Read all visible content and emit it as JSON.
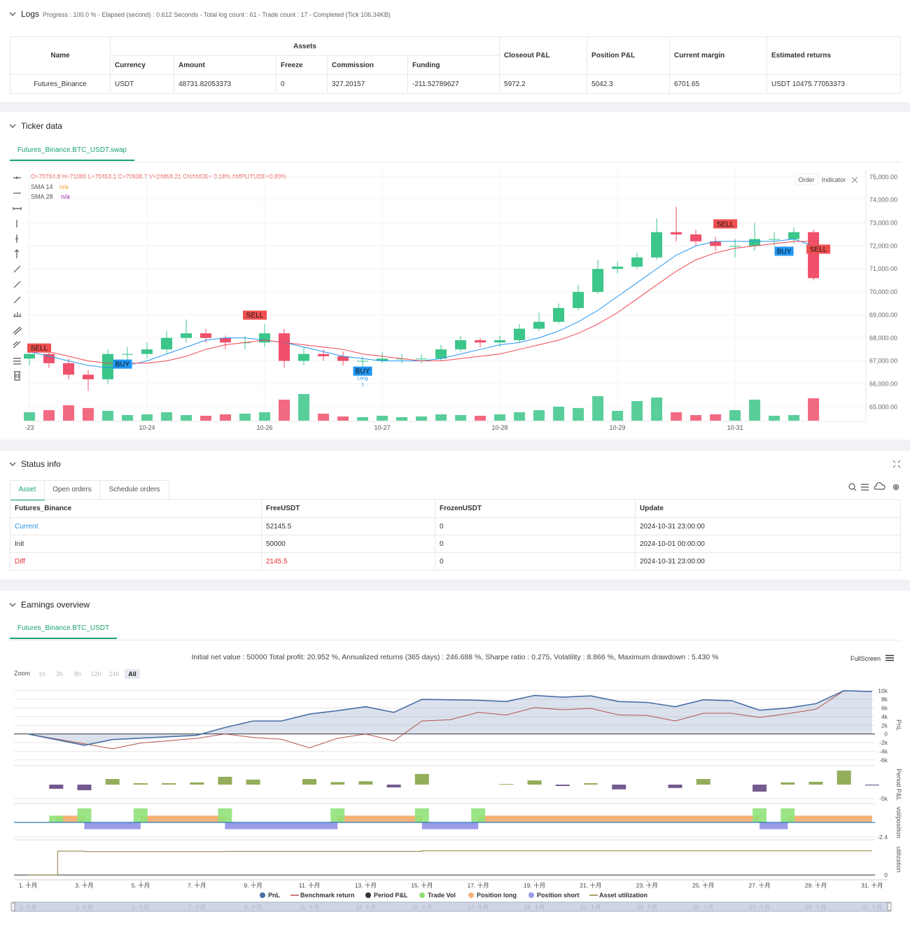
{
  "logs": {
    "title": "Logs",
    "summary": "Progress : 100.0 % - Elapsed (second) : 0.612 Seconds - Total log count : 61 - Trade count : 17 - Completed (Tick 106.34KB)",
    "table": {
      "header": [
        "Name",
        "Assets",
        "Closeout P&L",
        "Position P&L",
        "Current margin",
        "Estimated returns"
      ],
      "subheader": [
        "Currency",
        "Amount",
        "Freeze",
        "Commission",
        "Funding"
      ],
      "rows": [
        [
          "Futures_Binance",
          "USDT",
          "48731.82053373",
          "0",
          "327.20157",
          "-211.52789627",
          "5972.2",
          "5042.3",
          "6701.65",
          "USDT 10475.77053373"
        ]
      ]
    }
  },
  "ticker": {
    "title": "Ticker data",
    "tab": "Futures_Binance.BTC_USDT.swap",
    "buttons": [
      "Order",
      "Indicator"
    ],
    "ohlc_text": "O=70764.8 H=71080 L=70453.1 C=70638.7 V=24858.21 CHANGE=-0.18% AMPLITUDE=0.89%",
    "chart": {
      "type": "candlestick",
      "up_color": "#3cc68a",
      "down_color": "#f0506b",
      "grid": true,
      "xlim": [
        -1,
        170.7
      ],
      "xticks": [
        {
          "value": 0,
          "label": "-23"
        },
        {
          "value": 24,
          "label": "10-24"
        },
        {
          "value": 48,
          "label": "10-26"
        },
        {
          "value": 72,
          "label": "10-27"
        },
        {
          "value": 96,
          "label": "10-28"
        },
        {
          "value": 120,
          "label": "10-29"
        },
        {
          "value": 144,
          "label": "10-31"
        }
      ],
      "ylim": [
        64400,
        75300
      ],
      "yticks": [
        {
          "value": 75000,
          "label": "75,000.00"
        },
        {
          "value": 74000,
          "label": "74,000.00"
        },
        {
          "value": 73000,
          "label": "73,000.00"
        },
        {
          "value": 72000,
          "label": "72,000.00"
        },
        {
          "value": 71000,
          "label": "71,000.00"
        },
        {
          "value": 70000,
          "label": "70,000.00"
        },
        {
          "value": 69000,
          "label": "69,000.00"
        },
        {
          "value": 68000,
          "label": "68,000.00"
        },
        {
          "value": 67000,
          "label": "67,000.00"
        },
        {
          "value": 66000,
          "label": "66,000.00"
        },
        {
          "value": 65000,
          "label": "65,000.00"
        }
      ],
      "vlim": [
        0,
        50000
      ],
      "x": [
        0,
        4,
        8,
        12,
        16,
        20,
        24,
        28,
        32,
        36,
        40,
        44,
        48,
        52,
        56,
        60,
        64,
        68,
        72,
        76,
        80,
        84,
        88,
        92,
        96,
        100,
        104,
        108,
        112,
        116,
        120,
        124,
        128,
        132,
        136,
        140,
        144,
        148,
        152,
        156,
        160
      ],
      "open": [
        67100,
        67300,
        66900,
        66400,
        66200,
        67300,
        67300,
        67500,
        68000,
        68200,
        68000,
        67800,
        67800,
        68200,
        67000,
        67300,
        67200,
        67000,
        67000,
        67100,
        67100,
        67100,
        67500,
        67900,
        67800,
        67900,
        68400,
        68700,
        69300,
        70000,
        71000,
        71100,
        71500,
        72600,
        72500,
        72200,
        72000,
        72000,
        72300,
        72300,
        72600
      ],
      "high": [
        67600,
        67500,
        67100,
        66600,
        67500,
        67600,
        67800,
        68300,
        68800,
        68400,
        68100,
        68100,
        68600,
        68400,
        67600,
        67500,
        67400,
        67200,
        67400,
        67300,
        67300,
        67700,
        68100,
        68000,
        68100,
        68600,
        69100,
        69500,
        70300,
        71400,
        71300,
        71700,
        73200,
        73700,
        72700,
        72400,
        72300,
        73000,
        72600,
        72800,
        72700
      ],
      "low": [
        66800,
        66700,
        66200,
        65700,
        66000,
        67000,
        67100,
        67300,
        67800,
        67800,
        67500,
        67500,
        67600,
        66700,
        66800,
        67000,
        66800,
        66700,
        66900,
        66900,
        66900,
        67000,
        67400,
        67600,
        67600,
        67800,
        68300,
        68600,
        69200,
        69900,
        70800,
        71000,
        71400,
        72200,
        72000,
        71800,
        71500,
        71800,
        72000,
        72100,
        70500
      ],
      "close": [
        67300,
        66900,
        66400,
        66200,
        67300,
        67300,
        67500,
        68000,
        68200,
        68000,
        67800,
        67800,
        68200,
        67000,
        67300,
        67200,
        67000,
        67000,
        67100,
        67100,
        67100,
        67500,
        67900,
        67800,
        67900,
        68400,
        68700,
        69300,
        70000,
        71000,
        71100,
        71500,
        72600,
        72500,
        72200,
        72000,
        72000,
        72300,
        72300,
        72600,
        70600
      ],
      "volume": [
        12000,
        15000,
        22000,
        18000,
        14000,
        8000,
        9000,
        12000,
        8000,
        7000,
        9000,
        10000,
        12000,
        30000,
        38000,
        10000,
        6000,
        5000,
        7000,
        5000,
        6000,
        9000,
        8000,
        7000,
        9000,
        12000,
        15000,
        20000,
        18000,
        35000,
        14000,
        28000,
        33000,
        12000,
        8000,
        9000,
        15000,
        30000,
        7000,
        8000,
        32000
      ],
      "sma": [
        {
          "name": "SMA 14",
          "value_text": "n/a",
          "color": "#2196f3",
          "label_color": "#f59a23",
          "values": [
            67400,
            67200,
            67000,
            66800,
            66700,
            66800,
            67000,
            67300,
            67600,
            67900,
            68000,
            68000,
            67900,
            67800,
            67600,
            67400,
            67200,
            67100,
            67000,
            67000,
            67000,
            67100,
            67300,
            67500,
            67700,
            67800,
            68000,
            68300,
            68700,
            69200,
            69800,
            70400,
            71000,
            71600,
            72000,
            72200,
            72200,
            72200,
            72200,
            72300,
            72000
          ]
        },
        {
          "name": "SMA 28",
          "value_text": "n/a",
          "color": "#f0454f",
          "label_color": "#9c27b0",
          "values": [
            67600,
            67400,
            67200,
            67000,
            66900,
            66900,
            66900,
            67000,
            67200,
            67500,
            67700,
            67800,
            67900,
            67800,
            67700,
            67600,
            67500,
            67300,
            67200,
            67100,
            67000,
            67000,
            67100,
            67200,
            67300,
            67500,
            67700,
            67900,
            68200,
            68600,
            69100,
            69700,
            70300,
            70900,
            71400,
            71700,
            71900,
            72000,
            72100,
            72200,
            72200
          ]
        }
      ],
      "signals": [
        {
          "x": 2,
          "price": 67560,
          "label": "SELL",
          "color": "#f04f4f"
        },
        {
          "x": 19,
          "price": 66860,
          "label": "BUY",
          "color": "#2196f3"
        },
        {
          "x": 46,
          "price": 68990,
          "label": "SELL",
          "color": "#f04f4f"
        },
        {
          "x": 68,
          "price": 66555,
          "label": "BUY",
          "color": "#2196f3"
        },
        {
          "x": 142,
          "price": 72960,
          "label": "SELL",
          "color": "#f04f4f"
        },
        {
          "x": 154,
          "price": 71770,
          "label": "BUY",
          "color": "#2196f3"
        },
        {
          "x": 161,
          "price": 71860,
          "label": "SELL",
          "color": "#f04f4f"
        }
      ],
      "annotation": {
        "x": 68,
        "price": 66280,
        "texts": [
          "Long",
          "1"
        ]
      }
    }
  },
  "status": {
    "title": "Status info",
    "tabs": [
      "Asset",
      "Open orders",
      "Schedule orders"
    ],
    "table": {
      "header": [
        "Futures_Binance",
        "FreeUSDT",
        "FrozenUSDT",
        "Update"
      ],
      "rows": [
        [
          "Current",
          "52145.5",
          "0",
          "2024-10-31 23:00:00"
        ],
        [
          "Init",
          "50000",
          "0",
          "2024-10-01 00:00:00"
        ],
        [
          "Diff",
          "2145.5",
          "0",
          "2024-10-31 23:00:00"
        ]
      ]
    }
  },
  "earnings": {
    "title": "Earnings overview",
    "tab": "Futures_Binance.BTC_USDT",
    "summary": "Initial net value : 50000 Total profit: 20.952 %, Annualized returns (365 days) : 246.688 %, Sharpe ratio : 0.275, Volatility : 8.866 %, Maximum drawdown : 5.430 %",
    "fullscreen": "FullScreen",
    "zoom": {
      "label": "Zoom",
      "buttons": [
        "1h",
        "3h",
        "8h",
        "12h",
        "24h",
        "All"
      ]
    },
    "chart": {
      "type": "multi-panel",
      "xlim": [
        0.5,
        31.6
      ],
      "xticks": [
        {
          "value": 1,
          "label": "1. 十月"
        },
        {
          "value": 3,
          "label": "3. 十月"
        },
        {
          "value": 5,
          "label": "5. 十月"
        },
        {
          "value": 7,
          "label": "7. 十月"
        },
        {
          "value": 9,
          "label": "9. 十月"
        },
        {
          "value": 11,
          "label": "11. 十月"
        },
        {
          "value": 13,
          "label": "13. 十月"
        },
        {
          "value": 15,
          "label": "15. 十月"
        },
        {
          "value": 17,
          "label": "17. 十月"
        },
        {
          "value": 19,
          "label": "19. 十月"
        },
        {
          "value": 21,
          "label": "21. 十月"
        },
        {
          "value": 23,
          "label": "23. 十月"
        },
        {
          "value": 25,
          "label": "25. 十月"
        },
        {
          "value": 27,
          "label": "27. 十月"
        },
        {
          "value": 29,
          "label": "29. 十月"
        },
        {
          "value": 31,
          "label": "31. 十月"
        }
      ],
      "pnl": {
        "name": "PnL",
        "color": "#4a6fa5",
        "axis_label": "PnL",
        "ylim": [
          -7000,
          11100
        ],
        "yticks": [
          {
            "value": 10000,
            "label": "10k"
          },
          {
            "value": 8000,
            "label": "8k"
          },
          {
            "value": 6000,
            "label": "6k"
          },
          {
            "value": 4000,
            "label": "4k"
          },
          {
            "value": 2000,
            "label": "2k"
          },
          0,
          {
            "value": -2000,
            "label": "-2k"
          },
          {
            "value": -4000,
            "label": "-4k"
          },
          {
            "value": -6000,
            "label": "-6k"
          }
        ],
        "x": [
          1,
          3,
          4,
          7,
          8,
          9,
          10,
          11,
          12,
          13,
          14,
          15,
          17,
          18,
          19,
          20,
          21,
          22,
          23,
          24,
          25,
          26,
          27,
          28,
          29,
          30,
          31
        ],
        "values": [
          0,
          -2600,
          -1300,
          -300,
          1500,
          3000,
          3000,
          4600,
          5400,
          6300,
          5000,
          8000,
          7800,
          7500,
          8900,
          8500,
          8800,
          7500,
          7300,
          6300,
          7900,
          7700,
          5500,
          6000,
          7000,
          10000,
          9800
        ]
      },
      "benchmark": {
        "name": "Benchmark return",
        "color": "#b5534f",
        "x": [
          1,
          4,
          5,
          7,
          8,
          9,
          10,
          11,
          12,
          13,
          14,
          15,
          16,
          17,
          18,
          19,
          20,
          21,
          22,
          23,
          24,
          25,
          26,
          27,
          28,
          29,
          30,
          31
        ],
        "values": [
          0,
          -3400,
          -2100,
          -1000,
          0,
          -800,
          -1200,
          -3200,
          -1000,
          0,
          -1600,
          3000,
          3300,
          5000,
          4400,
          6100,
          5600,
          5900,
          4400,
          4300,
          3000,
          4800,
          4800,
          3800,
          4700,
          5700,
          10000,
          9800
        ]
      },
      "period": {
        "name": "Period P&L",
        "axis_label": "Period P&L",
        "color": "#333333",
        "positive_color": "#93ad5a",
        "negative_color": "#735a8f",
        "ylim": [
          -6250,
          6000
        ],
        "yticks": [
          {
            "value": -5000,
            "label": "-5k"
          }
        ],
        "x": [
          2,
          3,
          4,
          5,
          6,
          7,
          8,
          9,
          11,
          12,
          13,
          14,
          15,
          18,
          19,
          20,
          21,
          22,
          24,
          25,
          27,
          28,
          29,
          30,
          31
        ],
        "values": [
          -1500,
          -2000,
          2000,
          500,
          500,
          800,
          2800,
          1800,
          2000,
          900,
          1200,
          -1000,
          3800,
          200,
          1500,
          -500,
          500,
          -1700,
          -1200,
          2000,
          -2500,
          800,
          1000,
          5000,
          -300
        ]
      },
      "vol": {
        "axis_label": "vol/position",
        "ylim": [
          -2.63,
          2.86
        ],
        "yticks": [
          -2.4
        ],
        "trade_vol": {
          "name": "Trade Vol",
          "color": "#90e27a",
          "x": [
            2,
            3,
            5,
            8,
            12,
            15,
            17,
            27,
            28
          ],
          "values": [
            1.1,
            2.3,
            2.3,
            2.3,
            2.3,
            2.3,
            2.3,
            2.3,
            2.3
          ]
        },
        "position_long": {
          "name": "Position long",
          "color": "#f5b27a",
          "ranges": [
            [
              2,
              3
            ],
            [
              5,
              8
            ],
            [
              12,
              15
            ],
            [
              17,
              27
            ],
            [
              28,
              31
            ]
          ],
          "values": [
            1.1,
            1.1,
            1.1,
            1.1,
            1.1
          ]
        },
        "position_short": {
          "name": "Position short",
          "color": "#9b9be8",
          "ranges": [
            [
              3,
              5
            ],
            [
              8,
              12
            ],
            [
              15,
              17
            ],
            [
              27,
              28
            ]
          ],
          "values": [
            -1.1,
            -1.1,
            -1.1,
            -1.1
          ]
        }
      },
      "utilization": {
        "name": "Asset utilization",
        "color": "#8a7a3a",
        "axis_label": "utilization",
        "ylim": [
          -0.11,
          1.34
        ],
        "yticks": [
          0
        ],
        "x": [
          1,
          2.05,
          2.05,
          3,
          3,
          8,
          8,
          15,
          15,
          31
        ],
        "values": [
          0,
          0,
          0.97,
          0.97,
          0.95,
          0.95,
          0.96,
          0.96,
          0.98,
          0.98
        ]
      }
    }
  }
}
